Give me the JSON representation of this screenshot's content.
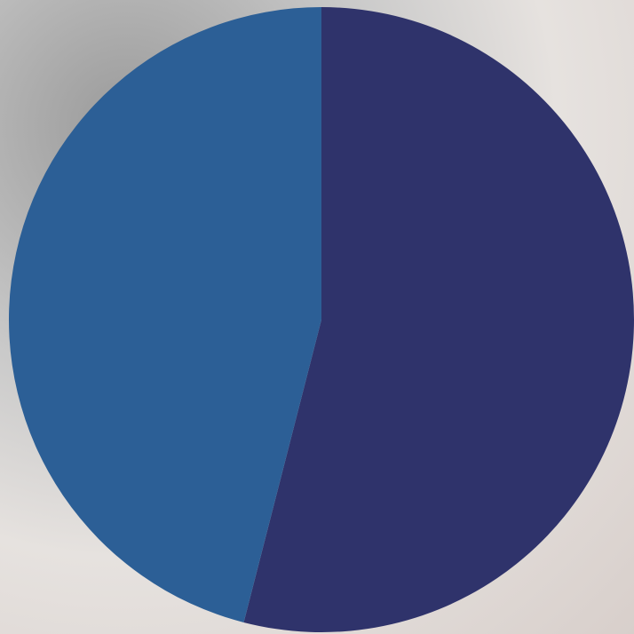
{
  "chart_data": {
    "type": "pie",
    "values": [
      54,
      46
    ],
    "colors": [
      "#2f336b",
      "#2c5f96"
    ]
  }
}
